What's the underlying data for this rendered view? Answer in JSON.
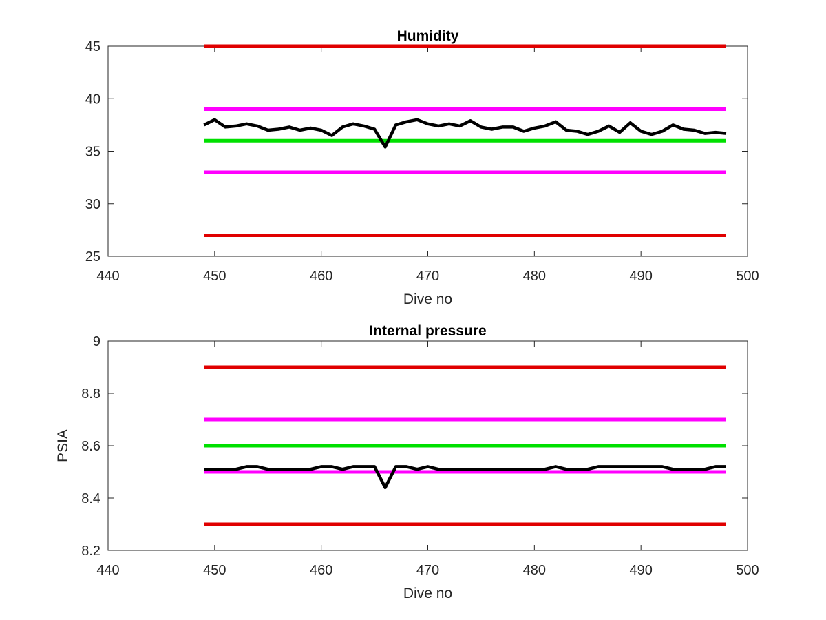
{
  "chart_data": [
    {
      "type": "line",
      "title": "Humidity",
      "xlabel": "Dive no",
      "ylabel": "",
      "xlim": [
        440,
        500
      ],
      "ylim": [
        25,
        45
      ],
      "xticks": [
        440,
        450,
        460,
        470,
        480,
        490,
        500
      ],
      "yticks": [
        25,
        30,
        35,
        40,
        45
      ],
      "grid": false,
      "legend": "none",
      "series": [
        {
          "color": "#e00000",
          "x": [
            449,
            498
          ],
          "values": [
            45,
            45
          ]
        },
        {
          "color": "#ff00ff",
          "x": [
            449,
            498
          ],
          "values": [
            39,
            39
          ]
        },
        {
          "color": "#00e000",
          "x": [
            449,
            498
          ],
          "values": [
            36,
            36
          ]
        },
        {
          "color": "#ff00ff",
          "x": [
            449,
            498
          ],
          "values": [
            33,
            33
          ]
        },
        {
          "color": "#e00000",
          "x": [
            449,
            498
          ],
          "values": [
            27,
            27
          ]
        },
        {
          "color": "#000000",
          "x": [
            449,
            450,
            451,
            452,
            453,
            454,
            455,
            456,
            457,
            458,
            459,
            460,
            461,
            462,
            463,
            464,
            465,
            466,
            467,
            468,
            469,
            470,
            471,
            472,
            473,
            474,
            475,
            476,
            477,
            478,
            479,
            480,
            481,
            482,
            483,
            484,
            485,
            486,
            487,
            488,
            489,
            490,
            491,
            492,
            493,
            494,
            495,
            496,
            497,
            498
          ],
          "values": [
            37.5,
            38.0,
            37.3,
            37.4,
            37.6,
            37.4,
            37.0,
            37.1,
            37.3,
            37.0,
            37.2,
            37.0,
            36.5,
            37.3,
            37.6,
            37.4,
            37.1,
            35.4,
            37.5,
            37.8,
            38.0,
            37.6,
            37.4,
            37.6,
            37.4,
            37.9,
            37.3,
            37.1,
            37.3,
            37.3,
            36.9,
            37.2,
            37.4,
            37.8,
            37.0,
            36.9,
            36.6,
            36.9,
            37.4,
            36.8,
            37.7,
            36.9,
            36.6,
            36.9,
            37.5,
            37.1,
            37.0,
            36.7,
            36.8,
            36.7
          ]
        }
      ]
    },
    {
      "type": "line",
      "title": "Internal pressure",
      "xlabel": "Dive no",
      "ylabel": "PSIA",
      "xlim": [
        440,
        500
      ],
      "ylim": [
        8.2,
        9
      ],
      "xticks": [
        440,
        450,
        460,
        470,
        480,
        490,
        500
      ],
      "yticks": [
        8.2,
        8.4,
        8.6,
        8.8,
        9
      ],
      "grid": false,
      "legend": "none",
      "series": [
        {
          "color": "#e00000",
          "x": [
            449,
            498
          ],
          "values": [
            8.9,
            8.9
          ]
        },
        {
          "color": "#ff00ff",
          "x": [
            449,
            498
          ],
          "values": [
            8.7,
            8.7
          ]
        },
        {
          "color": "#00e000",
          "x": [
            449,
            498
          ],
          "values": [
            8.6,
            8.6
          ]
        },
        {
          "color": "#ff00ff",
          "x": [
            449,
            498
          ],
          "values": [
            8.5,
            8.5
          ]
        },
        {
          "color": "#e00000",
          "x": [
            449,
            498
          ],
          "values": [
            8.3,
            8.3
          ]
        },
        {
          "color": "#000000",
          "x": [
            449,
            450,
            451,
            452,
            453,
            454,
            455,
            456,
            457,
            458,
            459,
            460,
            461,
            462,
            463,
            464,
            465,
            466,
            467,
            468,
            469,
            470,
            471,
            472,
            473,
            474,
            475,
            476,
            477,
            478,
            479,
            480,
            481,
            482,
            483,
            484,
            485,
            486,
            487,
            488,
            489,
            490,
            491,
            492,
            493,
            494,
            495,
            496,
            497,
            498
          ],
          "values": [
            8.51,
            8.51,
            8.51,
            8.51,
            8.52,
            8.52,
            8.51,
            8.51,
            8.51,
            8.51,
            8.51,
            8.52,
            8.52,
            8.51,
            8.52,
            8.52,
            8.52,
            8.44,
            8.52,
            8.52,
            8.51,
            8.52,
            8.51,
            8.51,
            8.51,
            8.51,
            8.51,
            8.51,
            8.51,
            8.51,
            8.51,
            8.51,
            8.51,
            8.52,
            8.51,
            8.51,
            8.51,
            8.52,
            8.52,
            8.52,
            8.52,
            8.52,
            8.52,
            8.52,
            8.51,
            8.51,
            8.51,
            8.51,
            8.52,
            8.52
          ]
        }
      ]
    }
  ]
}
